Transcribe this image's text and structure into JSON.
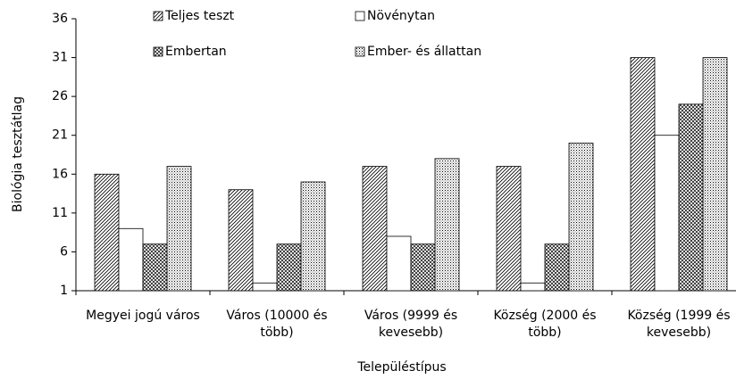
{
  "chart_data": {
    "type": "bar",
    "x_label": "Településtípus",
    "y_label": "Biológia tesztátlag",
    "categories": [
      "Megyei jogú város",
      "Város (10000 és több)",
      "Város (9999 és kevesebb)",
      "Község (2000 és több)",
      "Község (1999 és kevesebb)"
    ],
    "series": [
      {
        "name": "Teljes teszt",
        "color": "#000000",
        "pattern": "diagonal",
        "values": [
          16,
          14,
          17,
          17,
          31
        ]
      },
      {
        "name": "Növénytan",
        "color": "#000000",
        "pattern": "none",
        "values": [
          9,
          2,
          8,
          2,
          21
        ]
      },
      {
        "name": "Embertan",
        "color": "#000000",
        "pattern": "crosshatch",
        "values": [
          7,
          7,
          7,
          7,
          25
        ]
      },
      {
        "name": "Ember- és állattan",
        "color": "#000000",
        "pattern": "dots",
        "values": [
          17,
          15,
          18,
          20,
          31
        ]
      }
    ],
    "ylim": [
      1,
      36
    ],
    "yticks": [
      1,
      6,
      11,
      16,
      21,
      26,
      31,
      36
    ],
    "grid": false
  }
}
